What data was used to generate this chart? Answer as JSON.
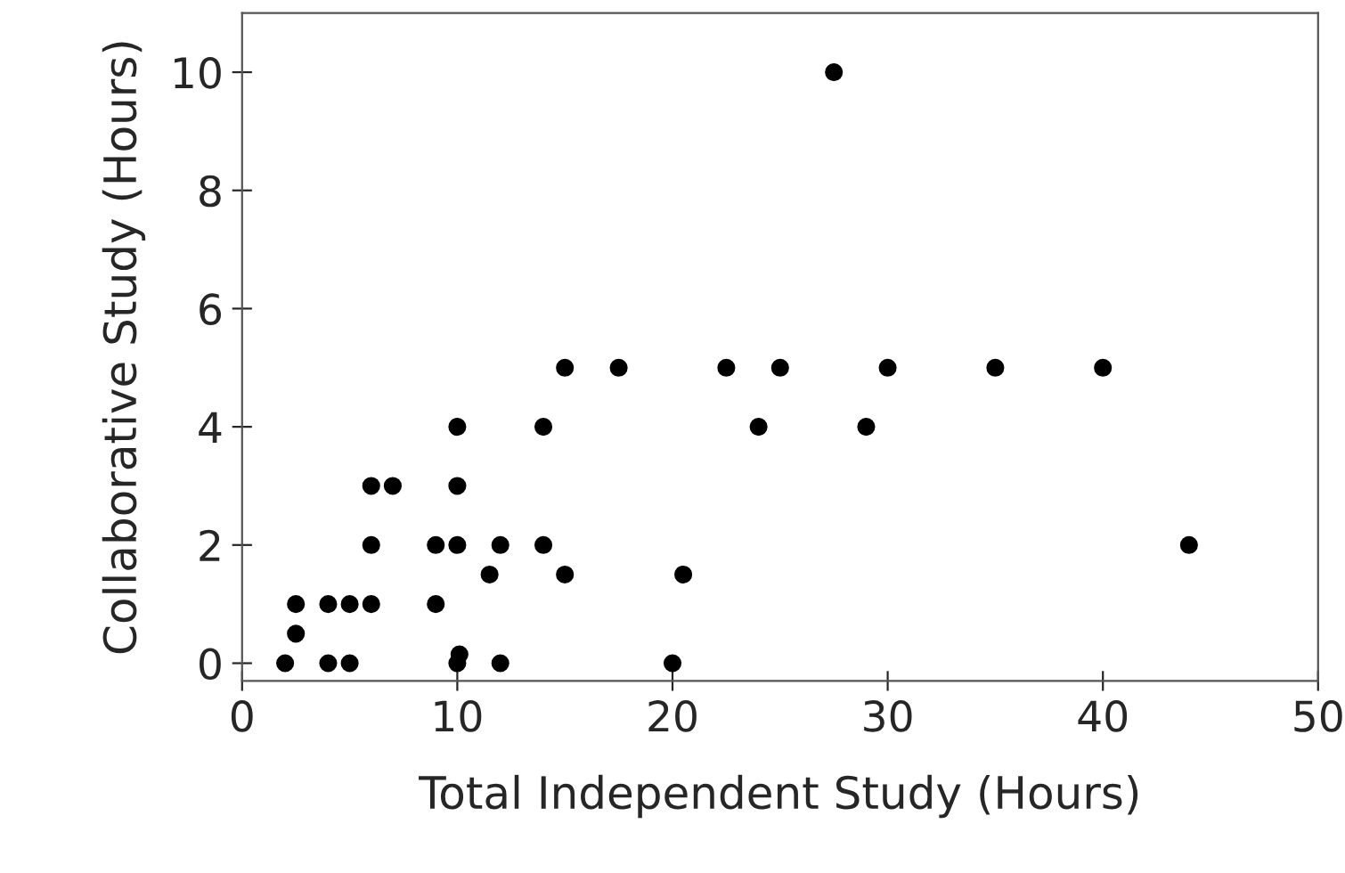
{
  "chart_data": {
    "type": "scatter",
    "xlabel": "Total Independent Study (Hours)",
    "ylabel": "Collaborative Study (Hours)",
    "x": [
      2,
      2.5,
      2.5,
      4,
      4,
      5,
      5,
      6,
      6,
      6,
      7,
      9,
      9,
      10,
      10,
      10,
      10,
      10.1,
      11.5,
      12,
      12,
      14,
      14,
      15,
      15,
      17.5,
      20,
      20.5,
      22.5,
      24,
      25,
      27.5,
      29,
      30,
      35,
      40,
      44
    ],
    "values": [
      0,
      0.5,
      1,
      1,
      0,
      1,
      0,
      1,
      2,
      3,
      3,
      2,
      1,
      4,
      3,
      2,
      0,
      0.15,
      1.5,
      2,
      0,
      4,
      2,
      5,
      1.5,
      5,
      0,
      1.5,
      5,
      4,
      5,
      10,
      4,
      5,
      5,
      5,
      2
    ],
    "color": "#000000",
    "marker": "circle",
    "xlim": [
      0,
      50
    ],
    "ylim": [
      -0.3,
      11
    ],
    "xticks": [
      0,
      10,
      20,
      30,
      40,
      50
    ],
    "yticks": [
      0,
      2,
      4,
      6,
      8,
      10
    ],
    "grid": false
  }
}
